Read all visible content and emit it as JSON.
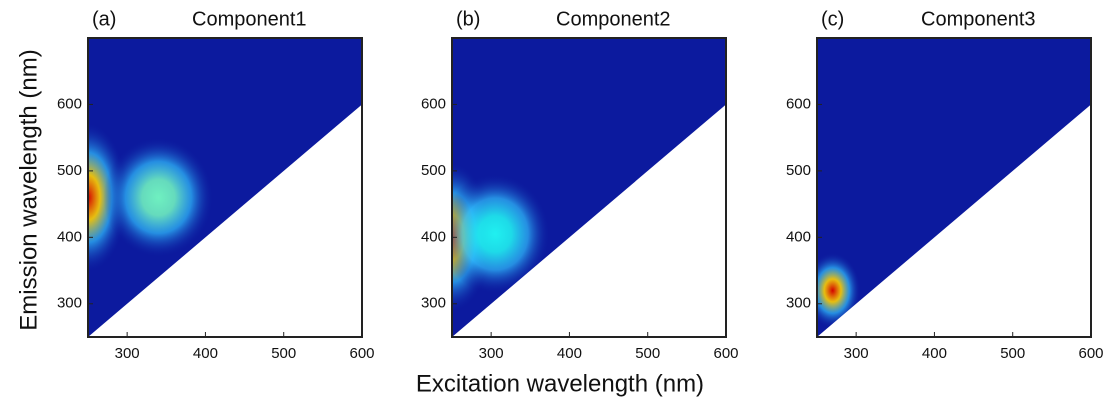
{
  "chart_data": [
    {
      "type": "contour",
      "panel_label": "(a)",
      "title": "Component1",
      "ylabel": "Emission wavelength (nm)",
      "xlim": [
        250,
        600
      ],
      "ylim": [
        250,
        700
      ],
      "xticks": [
        300,
        400,
        500,
        600
      ],
      "yticks": [
        300,
        400,
        500,
        600
      ],
      "background": "#0c1a9e",
      "peaks": [
        {
          "x": 250,
          "y": 460,
          "color": "#d40000"
        },
        {
          "x": 340,
          "y": 460,
          "color": "#6ff0c0"
        }
      ]
    },
    {
      "type": "contour",
      "panel_label": "(b)",
      "title": "Component2",
      "xlabel": "Excitation wavelength (nm)",
      "xlim": [
        250,
        600
      ],
      "ylim": [
        250,
        700
      ],
      "xticks": [
        300,
        400,
        500,
        600
      ],
      "yticks": [
        300,
        400,
        500,
        600
      ],
      "background": "#0c1a9e",
      "peaks": [
        {
          "x": 250,
          "y": 400,
          "color": "#e04000"
        },
        {
          "x": 305,
          "y": 405,
          "color": "#20f0f0"
        }
      ]
    },
    {
      "type": "contour",
      "panel_label": "(c)",
      "title": "Component3",
      "xlim": [
        250,
        600
      ],
      "ylim": [
        250,
        700
      ],
      "xticks": [
        300,
        400,
        500,
        600
      ],
      "yticks": [
        300,
        400,
        500,
        600
      ],
      "background": "#0c1a9e",
      "peaks": [
        {
          "x": 270,
          "y": 320,
          "color": "#d40000"
        }
      ]
    }
  ]
}
